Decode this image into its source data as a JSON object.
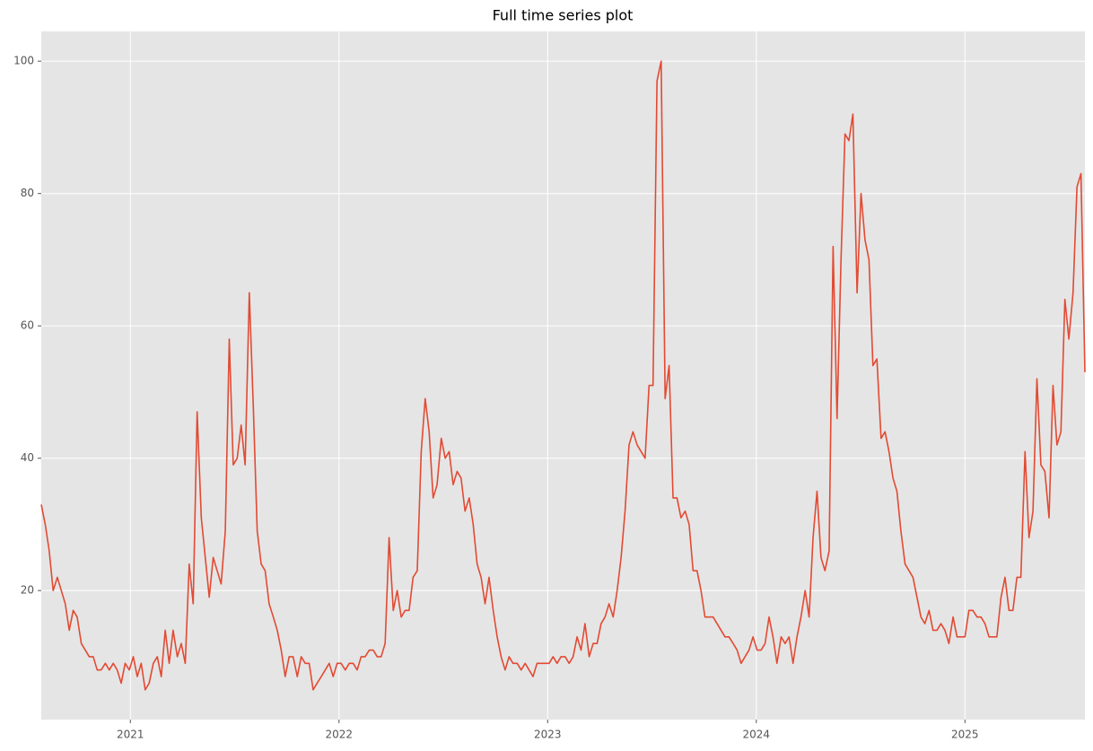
{
  "chart_data": {
    "type": "line",
    "title": "Full time series plot",
    "x": [
      2020.573,
      2020.592,
      2020.611,
      2020.63,
      2020.65,
      2020.669,
      2020.688,
      2020.707,
      2020.726,
      2020.745,
      2020.765,
      2020.784,
      2020.803,
      2020.822,
      2020.841,
      2020.86,
      2020.88,
      2020.899,
      2020.918,
      2020.937,
      2020.956,
      2020.975,
      2020.995,
      2021.014,
      2021.033,
      2021.052,
      2021.071,
      2021.09,
      2021.11,
      2021.129,
      2021.148,
      2021.167,
      2021.186,
      2021.205,
      2021.225,
      2021.244,
      2021.263,
      2021.282,
      2021.301,
      2021.32,
      2021.34,
      2021.359,
      2021.378,
      2021.397,
      2021.416,
      2021.435,
      2021.455,
      2021.474,
      2021.493,
      2021.512,
      2021.531,
      2021.55,
      2021.57,
      2021.589,
      2021.608,
      2021.627,
      2021.646,
      2021.665,
      2021.685,
      2021.704,
      2021.723,
      2021.742,
      2021.761,
      2021.78,
      2021.8,
      2021.819,
      2021.838,
      2021.857,
      2021.876,
      2021.895,
      2021.915,
      2021.934,
      2021.953,
      2021.972,
      2021.991,
      2022.01,
      2022.03,
      2022.049,
      2022.068,
      2022.087,
      2022.106,
      2022.125,
      2022.145,
      2022.164,
      2022.183,
      2022.202,
      2022.221,
      2022.24,
      2022.26,
      2022.279,
      2022.298,
      2022.317,
      2022.336,
      2022.355,
      2022.375,
      2022.394,
      2022.413,
      2022.432,
      2022.451,
      2022.47,
      2022.49,
      2022.509,
      2022.528,
      2022.547,
      2022.566,
      2022.585,
      2022.604,
      2022.624,
      2022.643,
      2022.662,
      2022.681,
      2022.7,
      2022.719,
      2022.739,
      2022.758,
      2022.777,
      2022.796,
      2022.815,
      2022.834,
      2022.854,
      2022.873,
      2022.892,
      2022.911,
      2022.93,
      2022.949,
      2022.969,
      2022.988,
      2023.007,
      2023.026,
      2023.045,
      2023.064,
      2023.084,
      2023.103,
      2023.122,
      2023.141,
      2023.16,
      2023.179,
      2023.199,
      2023.218,
      2023.237,
      2023.256,
      2023.275,
      2023.294,
      2023.314,
      2023.333,
      2023.352,
      2023.371,
      2023.39,
      2023.409,
      2023.429,
      2023.448,
      2023.467,
      2023.486,
      2023.505,
      2023.524,
      2023.544,
      2023.563,
      2023.582,
      2023.601,
      2023.62,
      2023.639,
      2023.659,
      2023.678,
      2023.697,
      2023.716,
      2023.735,
      2023.754,
      2023.774,
      2023.793,
      2023.812,
      2023.831,
      2023.85,
      2023.869,
      2023.889,
      2023.908,
      2023.927,
      2023.946,
      2023.965,
      2023.984,
      2024.004,
      2024.023,
      2024.042,
      2024.061,
      2024.08,
      2024.099,
      2024.119,
      2024.138,
      2024.157,
      2024.176,
      2024.195,
      2024.214,
      2024.234,
      2024.253,
      2024.272,
      2024.291,
      2024.31,
      2024.329,
      2024.349,
      2024.368,
      2024.387,
      2024.406,
      2024.425,
      2024.444,
      2024.463,
      2024.483,
      2024.502,
      2024.521,
      2024.54,
      2024.559,
      2024.578,
      2024.598,
      2024.617,
      2024.636,
      2024.655,
      2024.674,
      2024.693,
      2024.713,
      2024.732,
      2024.751,
      2024.77,
      2024.789,
      2024.808,
      2024.828,
      2024.847,
      2024.866,
      2024.885,
      2024.904,
      2024.923,
      2024.943,
      2024.962,
      2024.981,
      2025.0,
      2025.019,
      2025.038,
      2025.058,
      2025.077,
      2025.096,
      2025.115,
      2025.134,
      2025.153,
      2025.173,
      2025.192,
      2025.211,
      2025.23,
      2025.249,
      2025.268,
      2025.288,
      2025.307,
      2025.326,
      2025.345,
      2025.364,
      2025.383,
      2025.403,
      2025.422,
      2025.441,
      2025.46,
      2025.479,
      2025.498,
      2025.518,
      2025.537,
      2025.556,
      2025.575
    ],
    "values": [
      33,
      30,
      26,
      20,
      22,
      20,
      18,
      14,
      17,
      16,
      12,
      11,
      10,
      10,
      8,
      8,
      9,
      8,
      9,
      8,
      6,
      9,
      8,
      10,
      7,
      9,
      5,
      6,
      9,
      10,
      7,
      14,
      9,
      14,
      10,
      12,
      9,
      24,
      18,
      47,
      31,
      25,
      19,
      25,
      23,
      21,
      29,
      58,
      39,
      40,
      45,
      39,
      65,
      48,
      29,
      24,
      23,
      18,
      16,
      14,
      11,
      7,
      10,
      10,
      7,
      10,
      9,
      9,
      5,
      6,
      7,
      8,
      9,
      7,
      9,
      9,
      8,
      9,
      9,
      8,
      10,
      10,
      11,
      11,
      10,
      10,
      12,
      28,
      17,
      20,
      16,
      17,
      17,
      22,
      23,
      41,
      49,
      44,
      34,
      36,
      43,
      40,
      41,
      36,
      38,
      37,
      32,
      34,
      30,
      24,
      22,
      18,
      22,
      17,
      13,
      10,
      8,
      10,
      9,
      9,
      8,
      9,
      8,
      7,
      9,
      9,
      9,
      9,
      10,
      9,
      10,
      10,
      9,
      10,
      13,
      11,
      15,
      10,
      12,
      12,
      15,
      16,
      18,
      16,
      20,
      25,
      32,
      42,
      44,
      42,
      41,
      40,
      51,
      51,
      97,
      100,
      49,
      54,
      34,
      34,
      31,
      32,
      30,
      23,
      23,
      20,
      16,
      16,
      16,
      15,
      14,
      13,
      13,
      12,
      11,
      9,
      10,
      11,
      13,
      11,
      11,
      12,
      16,
      13,
      9,
      13,
      12,
      13,
      9,
      13,
      16,
      20,
      16,
      28,
      35,
      25,
      23,
      26,
      72,
      46,
      70,
      89,
      88,
      92,
      65,
      80,
      73,
      70,
      54,
      55,
      43,
      44,
      41,
      37,
      35,
      29,
      24,
      23,
      22,
      19,
      16,
      15,
      17,
      14,
      14,
      15,
      14,
      12,
      16,
      13,
      13,
      13,
      17,
      17,
      16,
      16,
      15,
      13,
      13,
      13,
      19,
      22,
      17,
      17,
      22,
      22,
      41,
      28,
      32,
      52,
      39,
      38,
      31,
      51,
      42,
      44,
      64,
      58,
      65,
      81,
      83,
      53
    ],
    "color": "#e24a33",
    "xlim": [
      2020.573,
      2025.575
    ],
    "xticks": [
      2021,
      2022,
      2023,
      2024,
      2025
    ],
    "ylim": [
      0.5,
      104.5
    ],
    "yticks": [
      20,
      40,
      60,
      80,
      100
    ],
    "grid": true
  }
}
